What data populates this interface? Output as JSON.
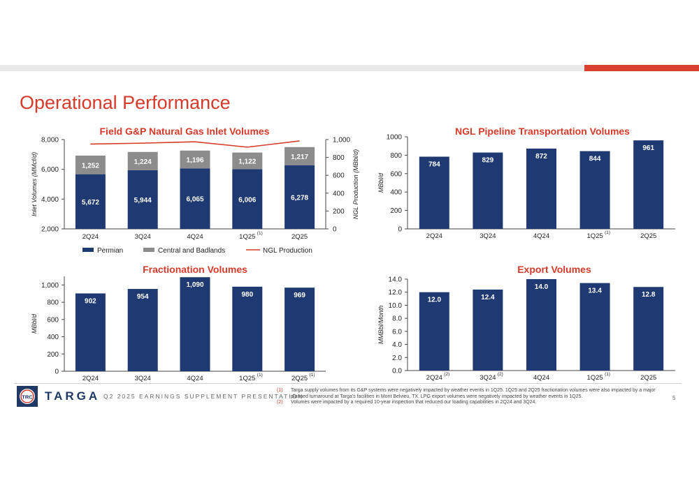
{
  "page": {
    "title": "Operational Performance",
    "presentation": "Q2 2025 EARNINGS SUPPLEMENT PRESENTATION",
    "page_number": "5",
    "logo_text": "TARGA",
    "logo_monogram": "TRC"
  },
  "footnotes": [
    {
      "mark": "(1)",
      "text": "Targa supply volumes from its G&P systems were negatively impacted by weather events in 1Q25. 1Q25 and 2Q25 fractionation volumes were also impacted by a major planned turnaround at Targa's facilities in Mont Belvieu, TX. LPG export volumes were negatively impacted by weather events in 1Q25."
    },
    {
      "mark": "(2)",
      "text": "Volumes were impacted by a required 10-year inspection that reduced our loading capabilities in 2Q24 and 3Q24."
    }
  ],
  "colors": {
    "navy": "#1f3a73",
    "gray": "#8c8c8c",
    "red": "#d63a2a"
  },
  "chart_data": [
    {
      "type": "bar",
      "stacked": true,
      "title": "Field G&P Natural Gas Inlet Volumes",
      "categories": [
        "2Q24",
        "3Q24",
        "4Q24",
        "1Q25",
        "2Q25"
      ],
      "category_footnotes": [
        "",
        "",
        "",
        "(1)",
        ""
      ],
      "ylabel": "Inlet Volumes (MMcf/d)",
      "ylim": [
        2000,
        8000
      ],
      "yticks": [
        "2,000",
        "4,000",
        "6,000",
        "8,000"
      ],
      "y2label": "NGL Production (MBbl/d)",
      "y2lim": [
        0,
        1000
      ],
      "y2ticks": [
        "0",
        "200",
        "400",
        "600",
        "800",
        "1,000"
      ],
      "series": [
        {
          "name": "Permian",
          "values": [
            5672,
            5944,
            6065,
            6006,
            6278
          ],
          "labels": [
            "5,672",
            "5,944",
            "6,065",
            "6,006",
            "6,278"
          ]
        },
        {
          "name": "Central and Badlands",
          "values": [
            1252,
            1224,
            1196,
            1122,
            1217
          ],
          "labels": [
            "1,252",
            "1,224",
            "1,196",
            "1,122",
            "1,217"
          ]
        },
        {
          "name": "NGL Production",
          "type": "line",
          "axis": "secondary",
          "values": [
            950,
            960,
            975,
            915,
            985
          ]
        }
      ],
      "legend": "bottom"
    },
    {
      "type": "bar",
      "title": "NGL Pipeline Transportation Volumes",
      "categories": [
        "2Q24",
        "3Q24",
        "4Q24",
        "1Q25",
        "2Q25"
      ],
      "category_footnotes": [
        "",
        "",
        "",
        "(1)",
        ""
      ],
      "ylabel": "MBbl/d",
      "ylim": [
        0,
        1000
      ],
      "yticks": [
        "0",
        "200",
        "400",
        "600",
        "800",
        "1000"
      ],
      "values": [
        784,
        829,
        872,
        844,
        961
      ],
      "labels": [
        "784",
        "829",
        "872",
        "844",
        "961"
      ]
    },
    {
      "type": "bar",
      "title": "Fractionation Volumes",
      "categories": [
        "2Q24",
        "3Q24",
        "4Q24",
        "1Q25",
        "2Q25"
      ],
      "category_footnotes": [
        "",
        "",
        "",
        "(1)",
        "(1)"
      ],
      "ylabel": "MBbl/d",
      "ylim": [
        0,
        1100
      ],
      "yticks": [
        "0",
        "200",
        "400",
        "600",
        "800",
        "1,000"
      ],
      "values": [
        902,
        954,
        1090,
        980,
        969
      ],
      "labels": [
        "902",
        "954",
        "1,090",
        "980",
        "969"
      ]
    },
    {
      "type": "bar",
      "title": "Export Volumes",
      "categories": [
        "2Q24",
        "3Q24",
        "4Q24",
        "1Q25",
        "2Q25"
      ],
      "category_footnotes": [
        "(2)",
        "(2)",
        "",
        "(1)",
        ""
      ],
      "ylabel": "MMBbl/Month",
      "ylim": [
        0,
        14
      ],
      "yticks": [
        "0.0",
        "2.0",
        "4.0",
        "6.0",
        "8.0",
        "10.0",
        "12.0",
        "14.0"
      ],
      "values": [
        12.0,
        12.4,
        14.0,
        13.4,
        12.8
      ],
      "labels": [
        "12.0",
        "12.4",
        "14.0",
        "13.4",
        "12.8"
      ]
    }
  ]
}
